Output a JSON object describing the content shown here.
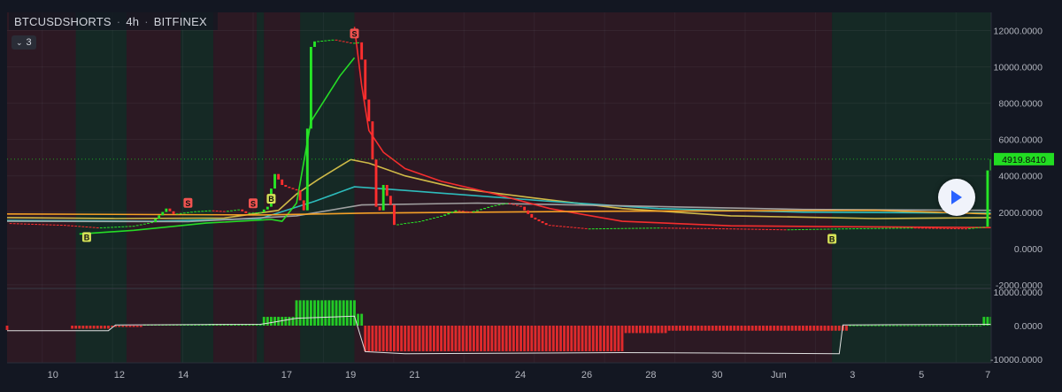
{
  "symbol": {
    "name": "BTCUSDSHORTS",
    "interval": "4h",
    "exchange": "BITFINEX"
  },
  "indicator_toggle": {
    "count": "3"
  },
  "colors": {
    "background": "#131722",
    "bull": "#26e626",
    "bear": "#ff2e2e",
    "sma_yellow": "#d8c24a",
    "sma_teal": "#2ec4c4",
    "sma_grey": "#a6a6a6",
    "last_price": "#22dd22",
    "axis_text": "#b2b5be"
  },
  "chart_data": [
    {
      "type": "candlestick",
      "title": "BTCUSDSHORTS · 4h · BITFINEX",
      "x_labels": [
        "10",
        "12",
        "14",
        "17",
        "19",
        "21",
        "24",
        "26",
        "28",
        "30",
        "Jun",
        "3",
        "5",
        "7"
      ],
      "y_ticks": [
        12000,
        10000,
        8000,
        6000,
        4000,
        2000,
        0,
        -2000
      ],
      "y_tick_labels": [
        "12000.0000",
        "10000.0000",
        "8000.0000",
        "6000.0000",
        "4000.0000",
        "2000.0000",
        "0.0000",
        "-2000.0000"
      ],
      "ylim": [
        -2200,
        13000
      ],
      "last_price": 4919.841,
      "last_price_label": "4919.8410",
      "close_path": [
        [
          0,
          1400
        ],
        [
          15,
          1300
        ],
        [
          25,
          1150
        ],
        [
          35,
          1250
        ],
        [
          40,
          1450
        ],
        [
          44,
          2200
        ],
        [
          46,
          1900
        ],
        [
          52,
          2050
        ],
        [
          56,
          2100
        ],
        [
          60,
          2050
        ],
        [
          64,
          2150
        ],
        [
          66,
          1950
        ],
        [
          70,
          2000
        ],
        [
          72,
          2300
        ],
        [
          73,
          3300
        ],
        [
          74,
          4100
        ],
        [
          76,
          3500
        ],
        [
          77,
          3400
        ],
        [
          80,
          3200
        ],
        [
          82,
          2100
        ],
        [
          84,
          11100
        ],
        [
          85,
          11400
        ],
        [
          90,
          11500
        ],
        [
          95,
          11300
        ],
        [
          97,
          11350
        ],
        [
          98,
          10400
        ],
        [
          99,
          8200
        ],
        [
          100,
          7000
        ],
        [
          101,
          4900
        ],
        [
          102,
          2300
        ],
        [
          103,
          2100
        ],
        [
          104,
          3500
        ],
        [
          105,
          2900
        ],
        [
          106,
          2400
        ],
        [
          107,
          1300
        ],
        [
          110,
          1400
        ],
        [
          114,
          1500
        ],
        [
          120,
          1800
        ],
        [
          124,
          2100
        ],
        [
          128,
          2000
        ],
        [
          134,
          2350
        ],
        [
          138,
          2500
        ],
        [
          142,
          2300
        ],
        [
          145,
          1700
        ],
        [
          149,
          1300
        ],
        [
          160,
          1100
        ],
        [
          180,
          1150
        ],
        [
          200,
          1100
        ],
        [
          215,
          1050
        ],
        [
          230,
          1100
        ],
        [
          250,
          1150
        ],
        [
          265,
          1100
        ],
        [
          270,
          1200
        ],
        [
          271,
          4300
        ],
        [
          272,
          4919.841
        ]
      ],
      "series": [
        {
          "name": "",
          "color": "#d8c24a",
          "points": [
            [
              0,
              1700
            ],
            [
              30,
              1650
            ],
            [
              60,
              1680
            ],
            [
              75,
              2100
            ],
            [
              80,
              3000
            ],
            [
              86,
              3800
            ],
            [
              95,
              4900
            ],
            [
              100,
              4700
            ],
            [
              110,
              4000
            ],
            [
              125,
              3300
            ],
            [
              145,
              2800
            ],
            [
              170,
              2200
            ],
            [
              200,
              1800
            ],
            [
              240,
              1650
            ],
            [
              272,
              1700
            ]
          ]
        },
        {
          "name": "",
          "color": "#2ec4c4",
          "points": [
            [
              0,
              1550
            ],
            [
              40,
              1500
            ],
            [
              70,
              1650
            ],
            [
              85,
              2600
            ],
            [
              96,
              3400
            ],
            [
              110,
              3200
            ],
            [
              130,
              2900
            ],
            [
              150,
              2600
            ],
            [
              180,
              2200
            ],
            [
              220,
              2000
            ],
            [
              272,
              1950
            ]
          ]
        },
        {
          "name": "",
          "color": "#a6a6a6",
          "points": [
            [
              0,
              1500
            ],
            [
              50,
              1480
            ],
            [
              80,
              1800
            ],
            [
              98,
              2400
            ],
            [
              130,
              2500
            ],
            [
              170,
              2350
            ],
            [
              220,
              2150
            ],
            [
              272,
              2100
            ]
          ]
        },
        {
          "name": "",
          "color": "#ff2e2e",
          "points": [
            [
              96,
              12200
            ],
            [
              98,
              9000
            ],
            [
              100,
              6500
            ],
            [
              104,
              5300
            ],
            [
              110,
              4400
            ],
            [
              120,
              3700
            ],
            [
              135,
              3000
            ],
            [
              150,
              2200
            ],
            [
              170,
              1500
            ],
            [
              200,
              1250
            ],
            [
              230,
              1200
            ],
            [
              272,
              1150
            ]
          ]
        },
        {
          "name": "",
          "color": "#26e626",
          "points": [
            [
              20,
              800
            ],
            [
              35,
              1000
            ],
            [
              55,
              1400
            ],
            [
              73,
              1600
            ],
            [
              76,
              1500
            ],
            [
              80,
              2500
            ],
            [
              84,
              7000
            ],
            [
              92,
              9500
            ],
            [
              96,
              10500
            ]
          ]
        },
        {
          "name": "",
          "color": "#ffa726",
          "points": [
            [
              0,
              1900
            ],
            [
              70,
              1850
            ],
            [
              100,
              1950
            ],
            [
              160,
              2050
            ],
            [
              240,
              2100
            ],
            [
              272,
              1900
            ]
          ]
        }
      ],
      "signals": [
        {
          "x": 22,
          "label": "B",
          "color": "#d4e157",
          "side": "below"
        },
        {
          "x": 50,
          "label": "S",
          "color": "#ef5350",
          "side": "above"
        },
        {
          "x": 68,
          "label": "S",
          "color": "#ef5350",
          "side": "above"
        },
        {
          "x": 73,
          "label": "B",
          "color": "#d4e157",
          "side": "below"
        },
        {
          "x": 96,
          "label": "S",
          "color": "#ef5350",
          "side": "above"
        },
        {
          "x": 228,
          "label": "B",
          "color": "#d4e157",
          "side": "below"
        }
      ],
      "grid": true
    },
    {
      "type": "histogram",
      "y_ticks": [
        10000,
        0,
        -10000
      ],
      "y_tick_labels": [
        "10000.0000",
        "0.0000",
        "-10000.0000"
      ],
      "ylim": [
        -11000,
        11000
      ],
      "segments": [
        [
          0,
          0,
          -1300
        ],
        [
          18,
          28,
          -900
        ],
        [
          29,
          37,
          -400
        ],
        [
          38,
          55,
          300
        ],
        [
          56,
          70,
          500
        ],
        [
          71,
          79,
          2600
        ],
        [
          80,
          96,
          7500
        ],
        [
          97,
          98,
          3500
        ],
        [
          99,
          170,
          -7600
        ],
        [
          171,
          182,
          -2200
        ],
        [
          183,
          232,
          -1500
        ],
        [
          233,
          269,
          100
        ],
        [
          270,
          272,
          2600
        ]
      ],
      "signal_line": [
        [
          0,
          -1500
        ],
        [
          28,
          -1500
        ],
        [
          30,
          200
        ],
        [
          70,
          400
        ],
        [
          72,
          700
        ],
        [
          80,
          2200
        ],
        [
          96,
          2800
        ],
        [
          99,
          -7700
        ],
        [
          110,
          -8300
        ],
        [
          170,
          -8000
        ],
        [
          230,
          -8300
        ],
        [
          231,
          200
        ],
        [
          272,
          400
        ]
      ],
      "grid": true
    }
  ],
  "background_bands": [
    [
      0,
      18,
      "bear"
    ],
    [
      19,
      32,
      "bull"
    ],
    [
      33,
      47,
      "bear"
    ],
    [
      48,
      56,
      "bull"
    ],
    [
      57,
      68,
      "bear"
    ],
    [
      69,
      70,
      "bull"
    ],
    [
      71,
      80,
      "bear"
    ],
    [
      81,
      95,
      "bull"
    ],
    [
      96,
      227,
      "bear"
    ],
    [
      228,
      272,
      "bull"
    ]
  ]
}
